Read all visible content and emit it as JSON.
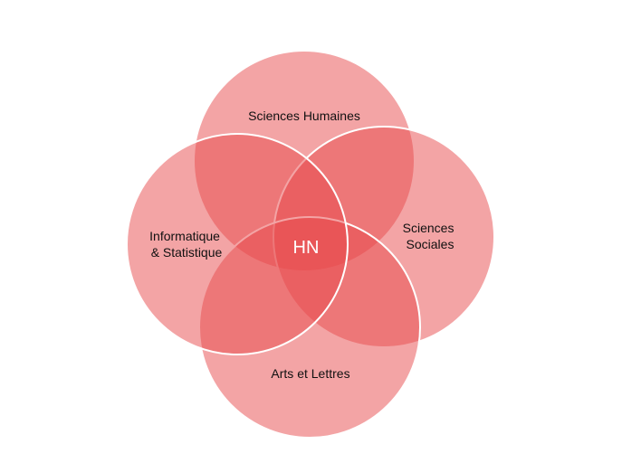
{
  "diagram": {
    "type": "venn",
    "fill_color": "#e8494b",
    "center_label": "HN",
    "sets": [
      {
        "id": "top",
        "lines": [
          "Sciences Humaines"
        ]
      },
      {
        "id": "right",
        "lines": [
          "Sciences",
          "Sociales"
        ]
      },
      {
        "id": "bottom",
        "lines": [
          "Arts et Lettres"
        ]
      },
      {
        "id": "left",
        "lines": [
          "Informatique",
          "& Statistique"
        ]
      }
    ]
  }
}
